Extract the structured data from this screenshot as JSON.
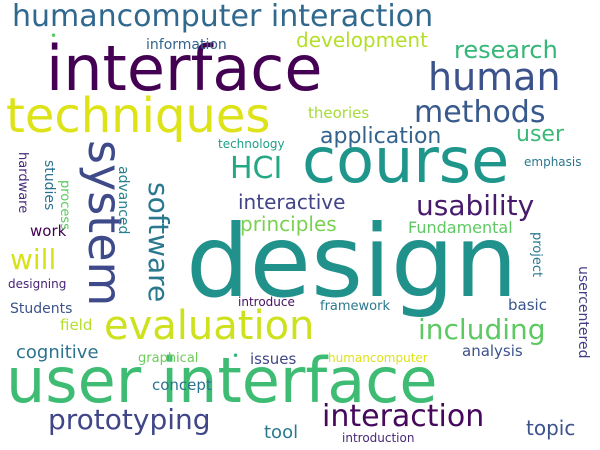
{
  "words": [
    {
      "id": "design",
      "text": "design",
      "color": "#21918c"
    },
    {
      "id": "user-interface",
      "text": "user interface",
      "color": "#3fbc73"
    },
    {
      "id": "interface",
      "text": "interface",
      "color": "#440154"
    },
    {
      "id": "course",
      "text": "course",
      "color": "#1f968b"
    },
    {
      "id": "techniques",
      "text": "techniques",
      "color": "#dde318"
    },
    {
      "id": "system",
      "text": "system",
      "color": "#3e4a89"
    },
    {
      "id": "evaluation",
      "text": "evaluation",
      "color": "#cde11d"
    },
    {
      "id": "human",
      "text": "human",
      "color": "#3b528b"
    },
    {
      "id": "humancomputer-interaction",
      "text": "humancomputer interaction",
      "color": "#31688e"
    },
    {
      "id": "methods",
      "text": "methods",
      "color": "#38598c"
    },
    {
      "id": "interaction",
      "text": "interaction",
      "color": "#46085c"
    },
    {
      "id": "prototyping",
      "text": "prototyping",
      "color": "#404688"
    },
    {
      "id": "including",
      "text": "including",
      "color": "#5ec962"
    },
    {
      "id": "usability",
      "text": "usability",
      "color": "#481a6c"
    },
    {
      "id": "software",
      "text": "software",
      "color": "#2a788e"
    },
    {
      "id": "will",
      "text": "will",
      "color": "#d8e219"
    },
    {
      "id": "HCI",
      "text": "HCI",
      "color": "#22a884"
    },
    {
      "id": "research",
      "text": "research",
      "color": "#35b779"
    },
    {
      "id": "application",
      "text": "application",
      "color": "#33638d"
    },
    {
      "id": "user",
      "text": "user",
      "color": "#3aba76"
    },
    {
      "id": "development",
      "text": "development",
      "color": "#b5de2b"
    },
    {
      "id": "interactive",
      "text": "interactive",
      "color": "#414487"
    },
    {
      "id": "principles",
      "text": "principles",
      "color": "#7ad151"
    },
    {
      "id": "Fundamental",
      "text": "Fundamental",
      "color": "#5ec962"
    },
    {
      "id": "topic",
      "text": "topic",
      "color": "#3b528b"
    },
    {
      "id": "cognitive",
      "text": "cognitive",
      "color": "#2c728e"
    },
    {
      "id": "tool",
      "text": "tool",
      "color": "#2a788e"
    },
    {
      "id": "theories",
      "text": "theories",
      "color": "#a5db36"
    },
    {
      "id": "analysis",
      "text": "analysis",
      "color": "#3b528b"
    },
    {
      "id": "concept",
      "text": "concept",
      "color": "#2c728e"
    },
    {
      "id": "issues",
      "text": "issues",
      "color": "#404688"
    },
    {
      "id": "field",
      "text": "field",
      "color": "#b5de2b"
    },
    {
      "id": "work",
      "text": "work",
      "color": "#440154"
    },
    {
      "id": "basic",
      "text": "basic",
      "color": "#39568c"
    },
    {
      "id": "Students",
      "text": "Students",
      "color": "#3b528b"
    },
    {
      "id": "information",
      "text": "information",
      "color": "#33638d"
    },
    {
      "id": "designing",
      "text": "designing",
      "color": "#482475"
    },
    {
      "id": "advanced",
      "text": "advanced",
      "color": "#26828e"
    },
    {
      "id": "studies",
      "text": "studies",
      "color": "#2c728e"
    },
    {
      "id": "hardware",
      "text": "hardware",
      "color": "#472d7b"
    },
    {
      "id": "process",
      "text": "process",
      "color": "#5ec962"
    },
    {
      "id": "project",
      "text": "project",
      "color": "#2a788e"
    },
    {
      "id": "usercentered",
      "text": "usercentered",
      "color": "#433e85"
    },
    {
      "id": "technology",
      "text": "technology",
      "color": "#1f9e89"
    },
    {
      "id": "emphasis",
      "text": "emphasis",
      "color": "#2a788e"
    },
    {
      "id": "introduce",
      "text": "introduce",
      "color": "#471063"
    },
    {
      "id": "framework",
      "text": "framework",
      "color": "#2a788e"
    },
    {
      "id": "graphical",
      "text": "graphical",
      "color": "#6ccd5a"
    },
    {
      "id": "humancomputer",
      "text": "humancomputer",
      "color": "#dde318"
    },
    {
      "id": "introduction",
      "text": "introduction",
      "color": "#482878"
    },
    {
      "id": "dot1",
      "text": "•",
      "color": "#5ec962"
    },
    {
      "id": "dot2",
      "text": "•",
      "color": "#35b779"
    }
  ]
}
